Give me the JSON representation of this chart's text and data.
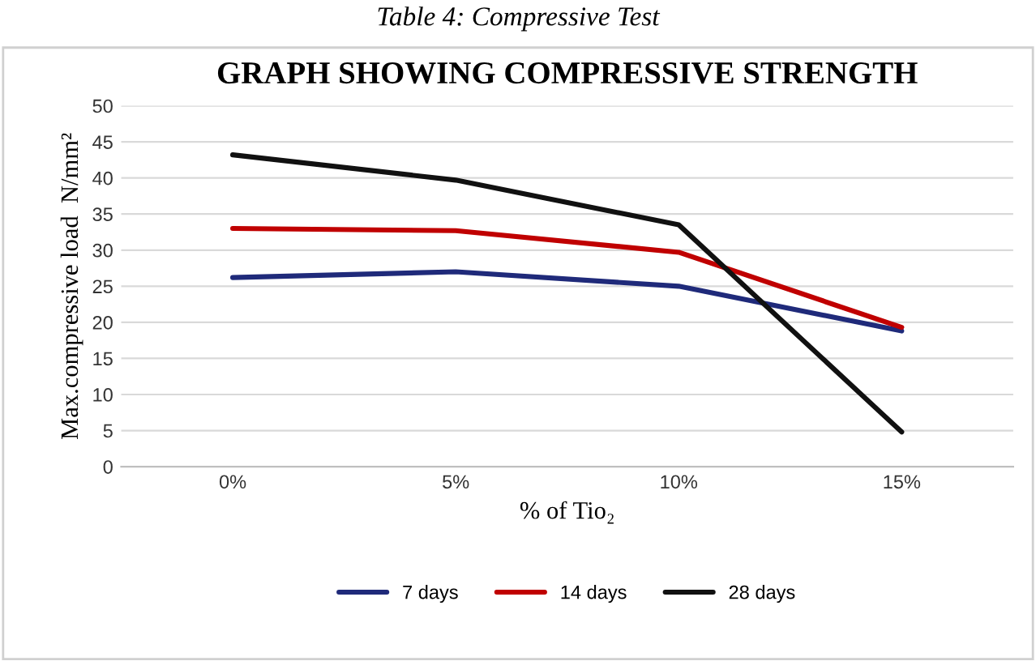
{
  "chart_data": {
    "type": "line",
    "title": "GRAPH SHOWING COMPRESSIVE STRENGTH",
    "annotations": [
      "Table 4: Compressive Test"
    ],
    "xlabel": "% of Tio₂",
    "ylabel": "Max.compressive load  N/mm²",
    "categories": [
      "0%",
      "5%",
      "10%",
      "15%"
    ],
    "series": [
      {
        "name": "7 days",
        "color": "#1f2a7a",
        "values": [
          26.2,
          27,
          25,
          18.8
        ]
      },
      {
        "name": "14 days",
        "color": "#c00000",
        "values": [
          33,
          32.7,
          29.7,
          19.3
        ]
      },
      {
        "name": "28 days",
        "color": "#111111",
        "values": [
          43.2,
          39.7,
          33.5,
          4.8
        ]
      }
    ],
    "ylim": [
      0,
      50
    ],
    "yticks": [
      0,
      5,
      10,
      15,
      20,
      25,
      30,
      35,
      40,
      45,
      50
    ],
    "grid": "y",
    "legend": "bottom",
    "marker": "none",
    "line_style": "solid"
  }
}
